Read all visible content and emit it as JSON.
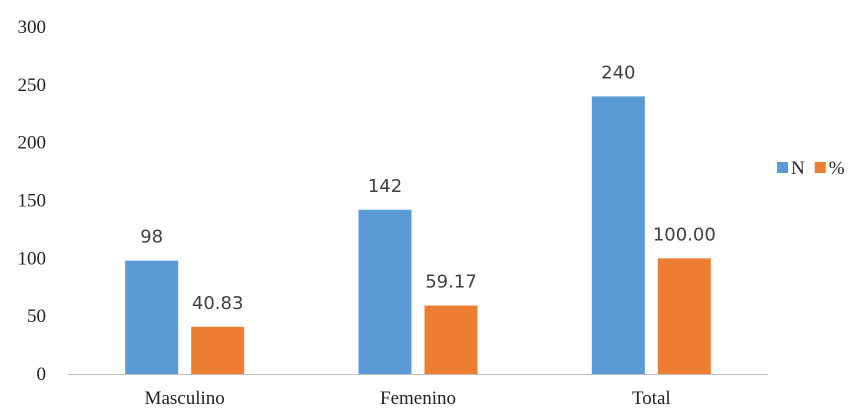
{
  "chart_data": {
    "type": "bar",
    "categories": [
      "Masculino",
      "Femenino",
      "Total"
    ],
    "series": [
      {
        "name": "N",
        "values": [
          98,
          142,
          240
        ],
        "labels": [
          "98",
          "142",
          "240"
        ],
        "color": "#5B9BD5"
      },
      {
        "name": "%",
        "values": [
          40.83,
          59.17,
          100.0
        ],
        "labels": [
          "40.83",
          "59.17",
          "100.00"
        ],
        "color": "#ED7D31"
      }
    ],
    "yticks": [
      "0",
      "50",
      "100",
      "150",
      "200",
      "250",
      "300"
    ],
    "ylim": [
      0,
      300
    ],
    "grid": false,
    "legend": "right"
  }
}
